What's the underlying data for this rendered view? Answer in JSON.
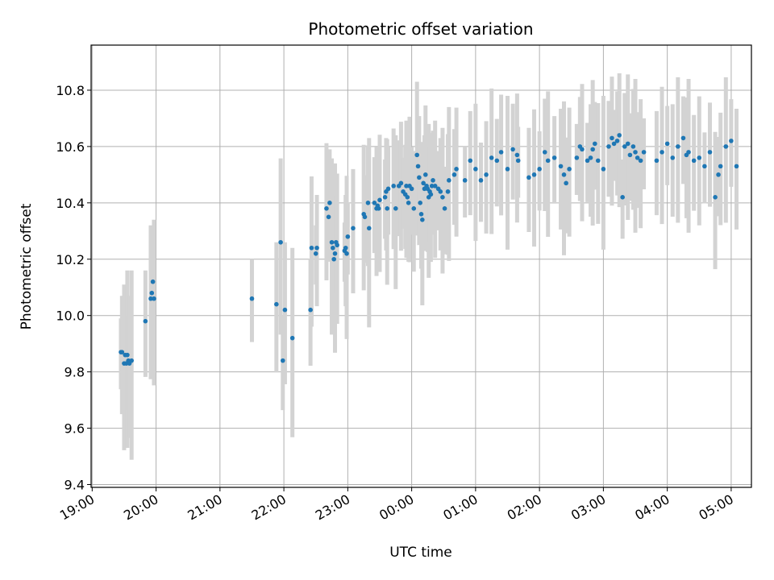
{
  "chart_data": {
    "type": "scatter",
    "title": "Photometric offset variation",
    "xlabel": "UTC time",
    "ylabel": "Photometric offset",
    "x_ticks": [
      "19:00",
      "20:00",
      "21:00",
      "22:00",
      "23:00",
      "00:00",
      "01:00",
      "02:00",
      "03:00",
      "04:00",
      "05:00"
    ],
    "y_ticks": [
      "9.4",
      "9.6",
      "9.8",
      "10.0",
      "10.2",
      "10.4",
      "10.6",
      "10.8"
    ],
    "x_unit": "minutes after 19:00 UTC",
    "xlim": [
      -1,
      619
    ],
    "ylim": [
      9.39,
      10.96
    ],
    "grid": true,
    "colors": {
      "points": "#1f77b4",
      "errorbars": "#d3d3d3",
      "grid": "#b0b0b0"
    },
    "series": [
      {
        "x": [
          27,
          28,
          30,
          31,
          32,
          33,
          34,
          35,
          37,
          50,
          55,
          56,
          57,
          58,
          150,
          173,
          177,
          179,
          181,
          188,
          205,
          206,
          210,
          211,
          220,
          222,
          223,
          225,
          226,
          227,
          228,
          229,
          230,
          237,
          238,
          239,
          240,
          245,
          255,
          256,
          259,
          260,
          265,
          267,
          268,
          269,
          270,
          275,
          276,
          277,
          278,
          283,
          285,
          288,
          290,
          292,
          294,
          295,
          296,
          297,
          298,
          300,
          302,
          305,
          306,
          307,
          308,
          309,
          310,
          311,
          312,
          313,
          314,
          315,
          316,
          317,
          318,
          319,
          320,
          322,
          325,
          327,
          329,
          331,
          334,
          335,
          340,
          342,
          350,
          355,
          360,
          365,
          370,
          375,
          380,
          384,
          390,
          395,
          399,
          400,
          410,
          415,
          420,
          425,
          428,
          434,
          440,
          443,
          445,
          448,
          455,
          458,
          460,
          465,
          468,
          470,
          472,
          475,
          480,
          485,
          488,
          490,
          493,
          495,
          498,
          500,
          503,
          505,
          508,
          510,
          512,
          515,
          518,
          530,
          535,
          540,
          545,
          550,
          555,
          558,
          560,
          565,
          570,
          575,
          580,
          585,
          588,
          590,
          595,
          600,
          605
        ],
        "y": [
          9.87,
          9.87,
          9.83,
          9.86,
          9.83,
          9.86,
          9.84,
          9.83,
          9.84,
          9.98,
          10.06,
          10.08,
          10.12,
          10.06,
          10.06,
          10.04,
          10.26,
          9.84,
          10.02,
          9.92,
          10.02,
          10.24,
          10.22,
          10.24,
          10.38,
          10.35,
          10.4,
          10.26,
          10.24,
          10.2,
          10.22,
          10.26,
          10.25,
          10.23,
          10.24,
          10.22,
          10.28,
          10.31,
          10.36,
          10.35,
          10.4,
          10.31,
          10.4,
          10.38,
          10.39,
          10.38,
          10.41,
          10.42,
          10.44,
          10.38,
          10.45,
          10.46,
          10.38,
          10.46,
          10.47,
          10.44,
          10.43,
          10.46,
          10.42,
          10.4,
          10.46,
          10.45,
          10.38,
          10.57,
          10.53,
          10.49,
          10.4,
          10.36,
          10.34,
          10.47,
          10.45,
          10.5,
          10.46,
          10.45,
          10.42,
          10.44,
          10.43,
          10.46,
          10.48,
          10.46,
          10.45,
          10.44,
          10.42,
          10.38,
          10.44,
          10.48,
          10.5,
          10.52,
          10.48,
          10.55,
          10.52,
          10.48,
          10.5,
          10.56,
          10.55,
          10.58,
          10.52,
          10.59,
          10.57,
          10.55,
          10.49,
          10.5,
          10.52,
          10.58,
          10.55,
          10.56,
          10.53,
          10.5,
          10.47,
          10.52,
          10.56,
          10.6,
          10.59,
          10.55,
          10.56,
          10.59,
          10.61,
          10.55,
          10.52,
          10.6,
          10.63,
          10.61,
          10.62,
          10.64,
          10.42,
          10.6,
          10.61,
          10.57,
          10.6,
          10.58,
          10.56,
          10.55,
          10.58,
          10.55,
          10.58,
          10.61,
          10.56,
          10.6,
          10.63,
          10.57,
          10.58,
          10.55,
          10.56,
          10.53,
          10.58,
          10.42,
          10.5,
          10.53,
          10.6,
          10.62,
          10.53
        ]
      }
    ]
  }
}
